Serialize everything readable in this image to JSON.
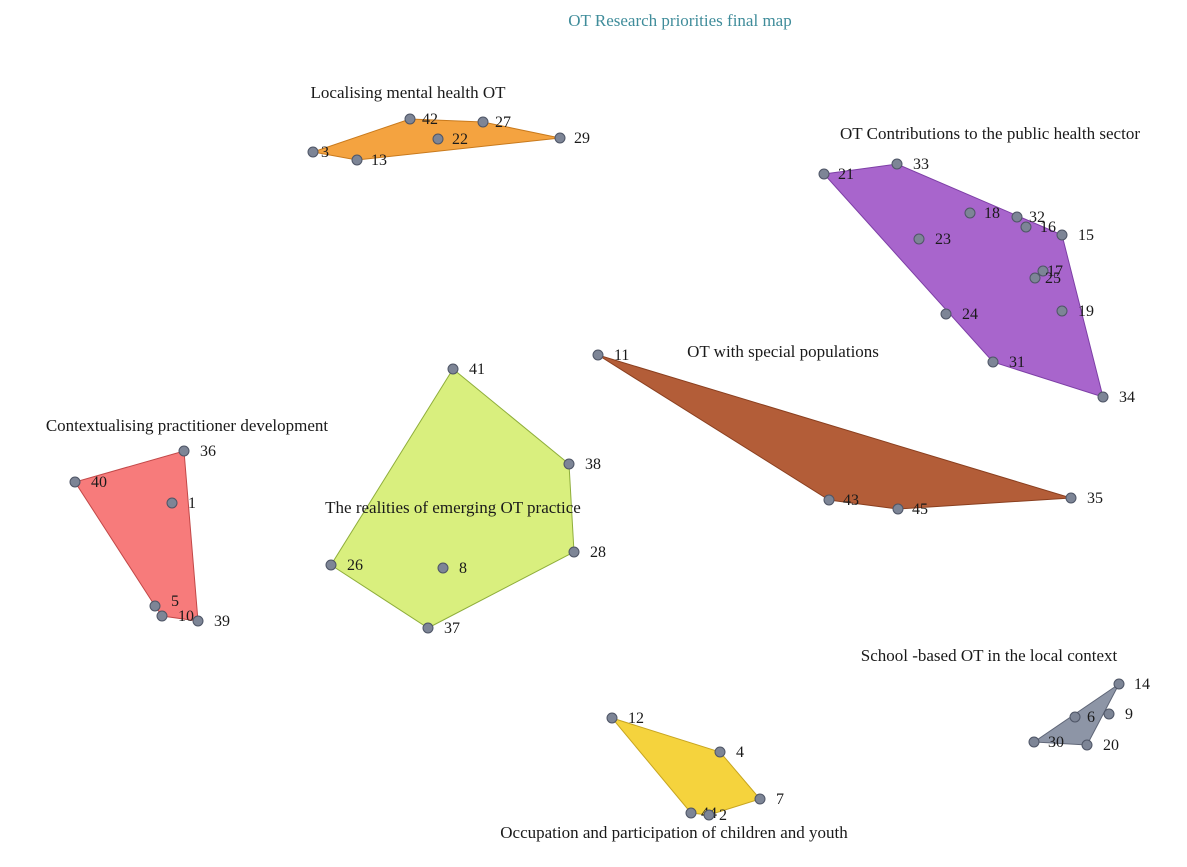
{
  "title": "OT Research priorities final map",
  "point_color": "#7d8596",
  "clusters": [
    {
      "id": "localising-mental-health",
      "label": "Localising mental health OT",
      "fill": "#f4a340",
      "stroke": "#c97a1c",
      "points": [
        {
          "id": "3",
          "label": "3"
        },
        {
          "id": "42",
          "label": "42"
        },
        {
          "id": "27",
          "label": "27"
        },
        {
          "id": "29",
          "label": "29"
        },
        {
          "id": "22",
          "label": "22"
        },
        {
          "id": "13",
          "label": "13"
        }
      ]
    },
    {
      "id": "public-health-sector",
      "label": "OT Contributions to the public health sector",
      "fill": "#a865cc",
      "stroke": "#7d3fa6",
      "points": [
        {
          "id": "21",
          "label": "21"
        },
        {
          "id": "33",
          "label": "33"
        },
        {
          "id": "18",
          "label": "18"
        },
        {
          "id": "32",
          "label": "32"
        },
        {
          "id": "16",
          "label": "16"
        },
        {
          "id": "15",
          "label": "15"
        },
        {
          "id": "23",
          "label": "23"
        },
        {
          "id": "17",
          "label": "17"
        },
        {
          "id": "25",
          "label": "25"
        },
        {
          "id": "19",
          "label": "19"
        },
        {
          "id": "24",
          "label": "24"
        },
        {
          "id": "31",
          "label": "31"
        },
        {
          "id": "34",
          "label": "34"
        }
      ]
    },
    {
      "id": "special-populations",
      "label": "OT with special populations",
      "fill": "#b35d38",
      "stroke": "#8a3f1f",
      "points": [
        {
          "id": "11",
          "label": "11"
        },
        {
          "id": "35",
          "label": "35"
        },
        {
          "id": "45",
          "label": "45"
        },
        {
          "id": "43",
          "label": "43"
        }
      ]
    },
    {
      "id": "practitioner-development",
      "label": "Contextualising practitioner development",
      "fill": "#f77b7b",
      "stroke": "#c24848",
      "points": [
        {
          "id": "36",
          "label": "36"
        },
        {
          "id": "40",
          "label": "40"
        },
        {
          "id": "1",
          "label": "1"
        },
        {
          "id": "5",
          "label": "5"
        },
        {
          "id": "10",
          "label": "10"
        },
        {
          "id": "39",
          "label": "39"
        }
      ]
    },
    {
      "id": "emerging-practice",
      "label": "The realities of emerging OT practice",
      "fill": "#d9ef7e",
      "stroke": "#8fae3b",
      "points": [
        {
          "id": "41",
          "label": "41"
        },
        {
          "id": "38",
          "label": "38"
        },
        {
          "id": "28",
          "label": "28"
        },
        {
          "id": "37",
          "label": "37"
        },
        {
          "id": "26",
          "label": "26"
        },
        {
          "id": "8",
          "label": "8"
        }
      ]
    },
    {
      "id": "school-based",
      "label": "School -based OT in the local context",
      "fill": "#8d95a6",
      "stroke": "#5f6677",
      "points": [
        {
          "id": "14",
          "label": "14"
        },
        {
          "id": "6",
          "label": "6"
        },
        {
          "id": "9",
          "label": "9"
        },
        {
          "id": "30",
          "label": "30"
        },
        {
          "id": "20",
          "label": "20"
        }
      ]
    },
    {
      "id": "children-youth",
      "label": "Occupation and participation of children and youth",
      "fill": "#f5d33d",
      "stroke": "#c7a520",
      "points": [
        {
          "id": "12",
          "label": "12"
        },
        {
          "id": "4",
          "label": "4"
        },
        {
          "id": "7",
          "label": "7"
        },
        {
          "id": "44",
          "label": "44"
        },
        {
          "id": "2",
          "label": "2"
        }
      ]
    }
  ]
}
